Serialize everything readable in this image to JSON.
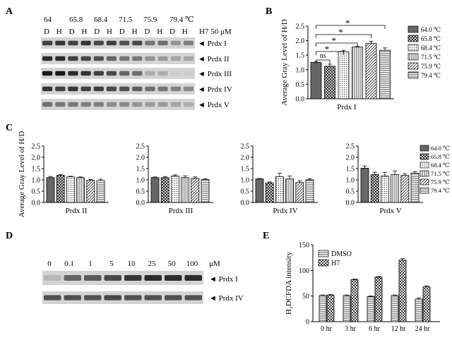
{
  "panels": {
    "A": {
      "letter": "A",
      "temps": [
        "64",
        "65.8",
        "68.4",
        "71.5",
        "75.9",
        "79.4 ℃"
      ],
      "lane_labels": [
        "D",
        "H",
        "D",
        "H",
        "D",
        "H",
        "D",
        "H",
        "D",
        "H",
        "D",
        "H"
      ],
      "treatment_label": "H7 50 μM",
      "blot_labels": [
        "Prdx I",
        "Prdx  II",
        "Prdx III",
        "Prdx IV",
        "Prdx V"
      ]
    },
    "D": {
      "letter": "D",
      "concentrations": [
        "0",
        "0.1",
        "1",
        "5",
        "10",
        "25",
        "50",
        "100"
      ],
      "unit": "μM",
      "blot_labels": [
        "Prdx I",
        "Prdx IV"
      ]
    }
  },
  "legend_temps": [
    "64.0 ℃",
    "65.8 ℃",
    "68.4 ℃",
    "71.5 ℃",
    "75.9 ℃",
    "79.4 ℃"
  ],
  "colors": {
    "axis": "#000000",
    "bar_fill": "#ffffff",
    "dark_fill": "#666666",
    "band": "#1a1a1a",
    "blot_bg": "#d4d4d4"
  },
  "chart_data": [
    {
      "panel": "B",
      "type": "bar",
      "ylabel": "Average Gray Level of H/D",
      "xlabel": "Prdx I",
      "ylim": [
        0,
        2.5
      ],
      "yticks": [
        "0.0",
        "0.5",
        "1.0",
        "1.5",
        "2.0",
        "2.5"
      ],
      "categories": [
        "64.0 ℃",
        "65.8 ℃",
        "68.4 ℃",
        "71.5 ℃",
        "75.9 ℃",
        "79.4 ℃"
      ],
      "values": [
        1.25,
        1.12,
        1.62,
        1.78,
        1.9,
        1.67
      ],
      "errors": [
        0.03,
        0.07,
        0.05,
        0.02,
        0.08,
        0.08
      ],
      "significance": [
        {
          "from": 0,
          "to": 1,
          "label": "ns"
        },
        {
          "from": 0,
          "to": 2,
          "label": "*"
        },
        {
          "from": 0,
          "to": 3,
          "label": "*"
        },
        {
          "from": 0,
          "to": 4,
          "label": "*"
        },
        {
          "from": 0,
          "to": 5,
          "label": "*"
        }
      ]
    },
    {
      "panel": "C",
      "type": "bar",
      "ylabel": "Average Gray Level of H/D",
      "ylim": [
        0,
        2.5
      ],
      "yticks": [
        "0.0",
        "0.5",
        "1.0",
        "1.5",
        "2.0",
        "2.5"
      ],
      "categories": [
        "64.0 ℃",
        "65.8 ℃",
        "68.4 ℃",
        "71.5 ℃",
        "75.9 ℃",
        "79.4 ℃"
      ],
      "groups": [
        {
          "name": "Prdx II",
          "values": [
            1.1,
            1.2,
            1.13,
            1.1,
            0.98,
            0.97
          ],
          "errors": [
            0.05,
            0.04,
            0.03,
            0.03,
            0.04,
            0.06
          ]
        },
        {
          "name": "Prdx III",
          "values": [
            1.1,
            1.1,
            1.17,
            1.1,
            1.07,
            1.02
          ],
          "errors": [
            0.03,
            0.05,
            0.05,
            0.08,
            0.06,
            0.03
          ]
        },
        {
          "name": "Prdx IV",
          "values": [
            1.04,
            0.87,
            1.14,
            1.04,
            0.88,
            1.0
          ],
          "errors": [
            0.02,
            0.04,
            0.15,
            0.13,
            0.08,
            0.05
          ]
        },
        {
          "name": "Prdx V",
          "values": [
            1.52,
            1.24,
            1.17,
            1.23,
            1.2,
            1.3
          ],
          "errors": [
            0.1,
            0.1,
            0.16,
            0.17,
            0.08,
            0.07
          ]
        }
      ]
    },
    {
      "panel": "E",
      "type": "bar",
      "ylabel": "H₂DCFDA intensity",
      "ylim": [
        0,
        150
      ],
      "yticks": [
        "0",
        "50",
        "100",
        "150"
      ],
      "categories": [
        "0 hr",
        "3 hr",
        "6 hr",
        "12 hr",
        "24 hr"
      ],
      "series": [
        {
          "name": "DMSO",
          "values": [
            51,
            51,
            49,
            51,
            44
          ],
          "errors": [
            1,
            1,
            1,
            1,
            2
          ]
        },
        {
          "name": "H7",
          "values": [
            52,
            82,
            87,
            120,
            68
          ],
          "errors": [
            1,
            1,
            1,
            3,
            2
          ]
        }
      ]
    }
  ]
}
